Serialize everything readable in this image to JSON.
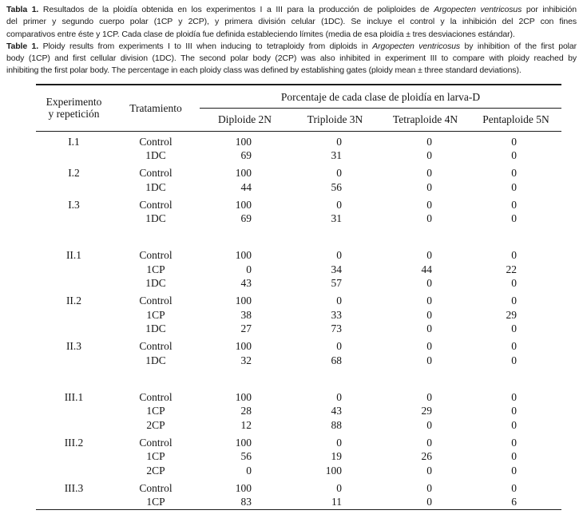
{
  "colors": {
    "text": "#1a1a1a",
    "rule": "#1c1c1c",
    "background": "#ffffff"
  },
  "captions": {
    "es": {
      "lines": [
        [
          {
            "t": "Tabla 1.",
            "b": true
          },
          {
            "t": "  Resultados de la ploidía obtenida en los experimentos I a III para la producción de poliploides de "
          },
          {
            "t": "Argopecten ventricosus",
            "i": true
          },
          {
            "t": " por inhibición"
          }
        ],
        [
          {
            "t": "del primer y segundo cuerpo polar (1CP y 2CP), y primera división celular (1DC). Se incluye el control y la inhibición del 2CP con fines"
          }
        ],
        [
          {
            "t": "comparativos entre éste y 1CP. Cada clase de ploidía fue definida estableciendo límites (media de esa ploidía ± tres desviaciones estándar)."
          }
        ]
      ]
    },
    "en": {
      "lines": [
        [
          {
            "t": "Table 1.",
            "b": true
          },
          {
            "t": "  Ploidy results from experiments I to III when inducing to tetraploidy from diploids in "
          },
          {
            "t": "Argopecten ventricosus",
            "i": true
          },
          {
            "t": " by inhibition of the first polar"
          }
        ],
        [
          {
            "t": "body (1CP) and first cellular division (1DC). The second polar body (2CP) was also inhibited in experiment III to compare with ploidy reached by"
          }
        ],
        [
          {
            "t": "inhibiting the first polar body. The percentage in each ploidy class was defined by establishing gates (ploidy mean ± three standard deviations)."
          }
        ]
      ]
    }
  },
  "table": {
    "header": {
      "experiment_line1": "Experimento",
      "experiment_line2": "y repetición",
      "treatment": "Tratamiento",
      "span": "Porcentaje de cada clase de ploidía en larva-D",
      "ploidy_classes": [
        "Diploide 2N",
        "Triploide 3N",
        "Tetraploide 4N",
        "Pentaploide 5N"
      ]
    },
    "groups": [
      {
        "experiment": "I.1",
        "gap": "first",
        "rows": [
          {
            "treatment": "Control",
            "values": [
              "100",
              "0",
              "0",
              "0"
            ]
          },
          {
            "treatment": "1DC",
            "values": [
              "69",
              "31",
              "0",
              "0"
            ]
          }
        ]
      },
      {
        "experiment": "I.2",
        "gap": "small",
        "rows": [
          {
            "treatment": "Control",
            "values": [
              "100",
              "0",
              "0",
              "0"
            ]
          },
          {
            "treatment": "1DC",
            "values": [
              "44",
              "56",
              "0",
              "0"
            ]
          }
        ]
      },
      {
        "experiment": "I.3",
        "gap": "small",
        "rows": [
          {
            "treatment": "Control",
            "values": [
              "100",
              "0",
              "0",
              "0"
            ]
          },
          {
            "treatment": "1DC",
            "values": [
              "69",
              "31",
              "0",
              "0"
            ]
          }
        ]
      },
      {
        "experiment": "II.1",
        "gap": "large",
        "rows": [
          {
            "treatment": "Control",
            "values": [
              "100",
              "0",
              "0",
              "0"
            ]
          },
          {
            "treatment": "1CP",
            "values": [
              "0",
              "34",
              "44",
              "22"
            ]
          },
          {
            "treatment": "1DC",
            "values": [
              "43",
              "57",
              "0",
              "0"
            ]
          }
        ]
      },
      {
        "experiment": "II.2",
        "gap": "small",
        "rows": [
          {
            "treatment": "Control",
            "values": [
              "100",
              "0",
              "0",
              "0"
            ]
          },
          {
            "treatment": "1CP",
            "values": [
              "38",
              "33",
              "0",
              "29"
            ]
          },
          {
            "treatment": "1DC",
            "values": [
              "27",
              "73",
              "0",
              "0"
            ]
          }
        ]
      },
      {
        "experiment": "II.3",
        "gap": "small",
        "rows": [
          {
            "treatment": "Control",
            "values": [
              "100",
              "0",
              "0",
              "0"
            ]
          },
          {
            "treatment": "1DC",
            "values": [
              "32",
              "68",
              "0",
              "0"
            ]
          }
        ]
      },
      {
        "experiment": "III.1",
        "gap": "large",
        "rows": [
          {
            "treatment": "Control",
            "values": [
              "100",
              "0",
              "0",
              "0"
            ]
          },
          {
            "treatment": "1CP",
            "values": [
              "28",
              "43",
              "29",
              "0"
            ]
          },
          {
            "treatment": "2CP",
            "values": [
              "12",
              "88",
              "0",
              "0"
            ]
          }
        ]
      },
      {
        "experiment": "III.2",
        "gap": "small",
        "rows": [
          {
            "treatment": "Control",
            "values": [
              "100",
              "0",
              "0",
              "0"
            ]
          },
          {
            "treatment": "1CP",
            "values": [
              "56",
              "19",
              "26",
              "0"
            ]
          },
          {
            "treatment": "2CP",
            "values": [
              "0",
              "100",
              "0",
              "0"
            ]
          }
        ]
      },
      {
        "experiment": "III.3",
        "gap": "small",
        "rows": [
          {
            "treatment": "Control",
            "values": [
              "100",
              "0",
              "0",
              "0"
            ]
          },
          {
            "treatment": "1CP",
            "values": [
              "83",
              "11",
              "0",
              "6"
            ]
          }
        ]
      }
    ]
  }
}
